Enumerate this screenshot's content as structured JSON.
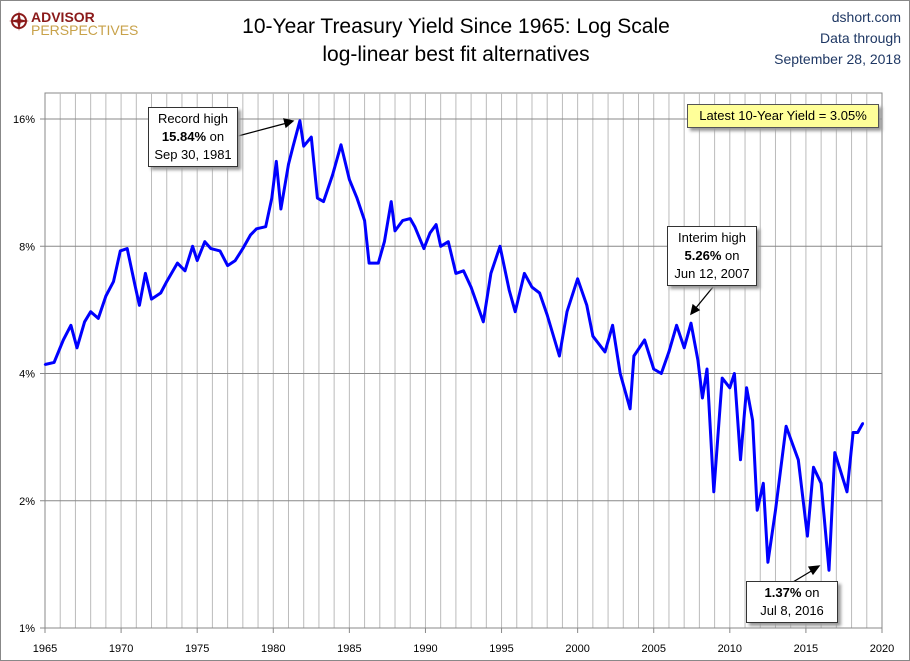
{
  "logo": {
    "line1": "ADVISOR",
    "line2": "PERSPECTIVES"
  },
  "header": {
    "title": "10-Year Treasury Yield Since 1965: Log Scale",
    "subtitle": "log-linear best fit alternatives"
  },
  "source": {
    "site": "dshort.com",
    "line2": "Data through",
    "date": "September 28, 2018"
  },
  "annotations": {
    "latest": "Latest 10-Year Yield = 3.05%",
    "record": {
      "l1": "Record high",
      "l2": "15.84%",
      "l2b": " on",
      "l3": "Sep 30, 1981"
    },
    "interim": {
      "l1": "Interim high",
      "l2": "5.26%",
      "l2b": " on",
      "l3": "Jun 12, 2007"
    },
    "low": {
      "l2": "1.37%",
      "l2b": " on",
      "l3": "Jul 8, 2016"
    }
  },
  "chart_data": {
    "type": "line",
    "title": "10-Year Treasury Yield Since 1965: Log Scale",
    "y_scale": "log2",
    "ylim": [
      1,
      16
    ],
    "xlim": [
      1965,
      2020
    ],
    "y_ticks": [
      {
        "v": 1,
        "label": "1%"
      },
      {
        "v": 2,
        "label": "2%"
      },
      {
        "v": 4,
        "label": "4%"
      },
      {
        "v": 8,
        "label": "8%"
      },
      {
        "v": 16,
        "label": "16%"
      }
    ],
    "x_ticks": [
      "1965",
      "1970",
      "1975",
      "1980",
      "1985",
      "1990",
      "1995",
      "2000",
      "2005",
      "2010",
      "2015",
      "2020"
    ],
    "grid": "vertical yearly, horizontal at ticks",
    "color": "#0000ff",
    "series": [
      {
        "x": [
          1965,
          1965.6,
          1966.2,
          1966.7,
          1967.1,
          1967.6,
          1968.0,
          1968.5,
          1969.0,
          1969.5,
          1969.95,
          1970.4,
          1970.9,
          1971.2,
          1971.6,
          1972.0,
          1972.6,
          1973.0,
          1973.7,
          1974.2,
          1974.7,
          1975.0,
          1975.5,
          1975.9,
          1976.5,
          1977.0,
          1977.5,
          1978.0,
          1978.5,
          1978.9,
          1979.5,
          1979.9,
          1980.2,
          1980.5,
          1981.0,
          1981.3,
          1981.75,
          1982.0,
          1982.5,
          1982.9,
          1983.3,
          1983.9,
          1984.45,
          1985.0,
          1985.5,
          1986.0,
          1986.3,
          1986.9,
          1987.3,
          1987.75,
          1988.0,
          1988.5,
          1989.0,
          1989.3,
          1989.9,
          1990.3,
          1990.7,
          1991.0,
          1991.5,
          1992.0,
          1992.5,
          1993.0,
          1993.8,
          1994.3,
          1994.9,
          1995.5,
          1995.9,
          1996.5,
          1997.0,
          1997.5,
          1998.0,
          1998.8,
          1999.3,
          2000.0,
          2000.6,
          2001.0,
          2001.8,
          2002.3,
          2002.8,
          2003.45,
          2003.7,
          2004.4,
          2005.0,
          2005.5,
          2006.0,
          2006.5,
          2007.0,
          2007.45,
          2007.9,
          2008.2,
          2008.5,
          2008.95,
          2009.5,
          2010.0,
          2010.3,
          2010.7,
          2011.1,
          2011.5,
          2011.8,
          2012.2,
          2012.5,
          2013.0,
          2013.7,
          2014.0,
          2014.5,
          2015.1,
          2015.5,
          2016.0,
          2016.52,
          2016.9,
          2017.2,
          2017.7,
          2018.1,
          2018.4,
          2018.74
        ],
        "y": [
          4.2,
          4.25,
          4.8,
          5.2,
          4.6,
          5.3,
          5.6,
          5.4,
          6.1,
          6.6,
          7.8,
          7.9,
          6.5,
          5.8,
          6.9,
          6.0,
          6.2,
          6.6,
          7.3,
          7.0,
          8.0,
          7.4,
          8.2,
          7.9,
          7.8,
          7.2,
          7.4,
          7.9,
          8.5,
          8.8,
          8.9,
          10.4,
          12.7,
          9.8,
          12.5,
          13.8,
          15.84,
          13.8,
          14.5,
          10.4,
          10.2,
          11.8,
          13.9,
          11.5,
          10.4,
          9.2,
          7.3,
          7.3,
          8.2,
          10.2,
          8.7,
          9.2,
          9.3,
          8.9,
          7.9,
          8.6,
          9.0,
          8.0,
          8.2,
          6.9,
          7.0,
          6.4,
          5.3,
          6.9,
          8.0,
          6.3,
          5.6,
          6.9,
          6.4,
          6.2,
          5.5,
          4.4,
          5.6,
          6.7,
          5.8,
          4.9,
          4.5,
          5.2,
          4.0,
          3.3,
          4.4,
          4.8,
          4.1,
          4.0,
          4.5,
          5.2,
          4.6,
          5.26,
          4.3,
          3.5,
          4.1,
          2.1,
          3.9,
          3.7,
          4.0,
          2.5,
          3.7,
          3.1,
          1.9,
          2.2,
          1.43,
          1.9,
          3.0,
          2.8,
          2.5,
          1.65,
          2.4,
          2.2,
          1.37,
          2.6,
          2.4,
          2.1,
          2.9,
          2.9,
          3.05
        ]
      }
    ]
  }
}
